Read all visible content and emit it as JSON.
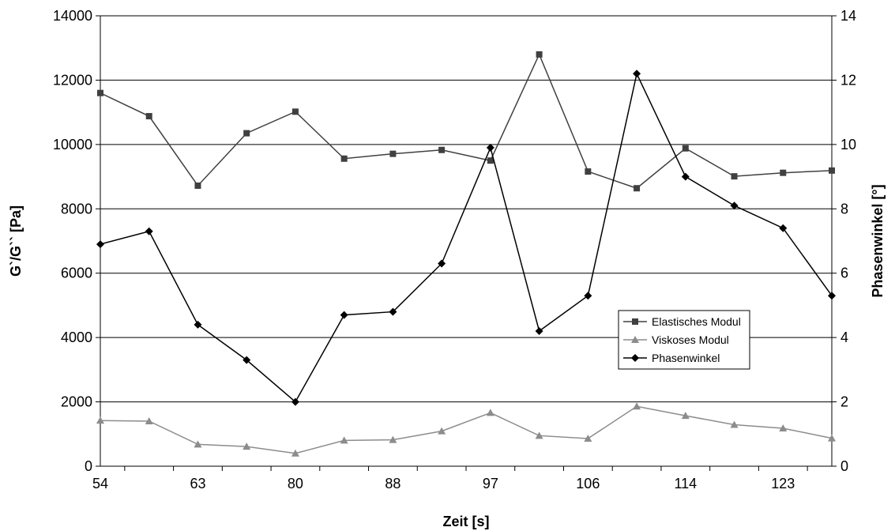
{
  "chart_data": {
    "type": "line",
    "x_tick_labels": [
      "54",
      "63",
      "80",
      "88",
      "97",
      "106",
      "114",
      "123"
    ],
    "xlabel": "Zeit [s]",
    "ylabel_left": "G`/G`` [Pa]",
    "ylabel_right": "Phasenwinkel [°]",
    "ylim_left": [
      0,
      14000
    ],
    "ylim_right": [
      0,
      14
    ],
    "yticks_left": [
      "0",
      "2000",
      "4000",
      "6000",
      "8000",
      "10000",
      "12000",
      "14000"
    ],
    "yticks_right": [
      "0",
      "2",
      "4",
      "6",
      "8",
      "10",
      "12",
      "14"
    ],
    "grid": "horizontal",
    "legend_position": "center-right",
    "series": [
      {
        "name": "Elastisches Modul",
        "axis": "left",
        "marker": "square",
        "color": "#404040",
        "values": [
          11600,
          10880,
          8720,
          10350,
          11020,
          9560,
          9710,
          9830,
          9500,
          12800,
          9160,
          8640,
          9880,
          9010,
          9120,
          9190
        ]
      },
      {
        "name": "Viskoses Modul",
        "axis": "left",
        "marker": "triangle",
        "color": "#8c8c8c",
        "values": [
          1420,
          1400,
          680,
          610,
          400,
          800,
          820,
          1090,
          1660,
          950,
          860,
          1860,
          1570,
          1290,
          1180,
          870
        ]
      },
      {
        "name": "Phasenwinkel",
        "axis": "right",
        "marker": "diamond",
        "color": "#000000",
        "values": [
          6.9,
          7.3,
          4.4,
          3.3,
          2.0,
          4.7,
          4.8,
          6.3,
          9.9,
          4.2,
          5.3,
          12.2,
          9.0,
          8.1,
          7.4,
          5.3
        ]
      }
    ]
  }
}
